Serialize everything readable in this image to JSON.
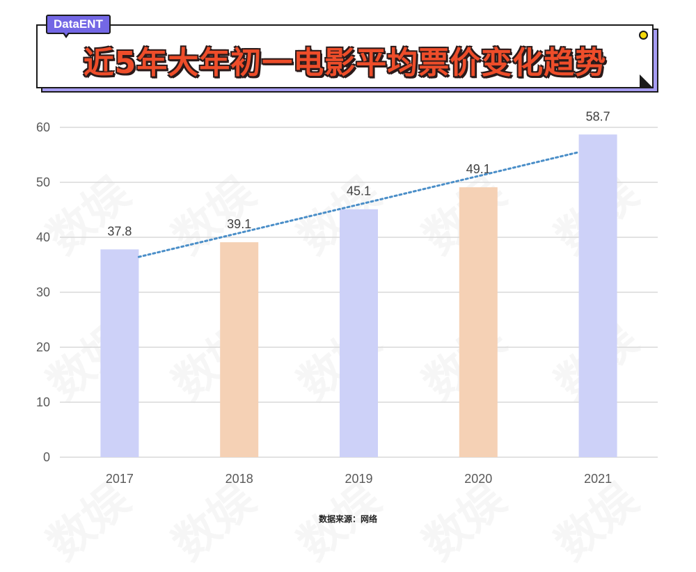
{
  "brand": "DataENT",
  "title": "近5年大年初一电影平均票价变化趋势",
  "watermark": "数娱",
  "source": "数据来源：网络",
  "colors": {
    "bar_blue": "#cdd1f8",
    "bar_orange": "#f5d1b5",
    "trendline": "#4a8ec8",
    "grid": "#d9d9d9",
    "title_red": "#ee4d2a",
    "brand_purple": "#7367e5"
  },
  "chart_data": {
    "type": "bar",
    "categories": [
      "2017",
      "2018",
      "2019",
      "2020",
      "2021"
    ],
    "values": [
      37.8,
      39.1,
      45.1,
      49.1,
      58.7
    ],
    "data_labels": [
      "37.8",
      "39.1",
      "45.1",
      "49.1",
      "58.7"
    ],
    "bar_colors": [
      "blue",
      "orange",
      "blue",
      "orange",
      "blue"
    ],
    "ylim": [
      0,
      60
    ],
    "yticks": [
      0,
      10,
      20,
      30,
      40,
      50,
      60
    ],
    "grid": true,
    "trendline": "linear, dotted",
    "legend": "none"
  }
}
